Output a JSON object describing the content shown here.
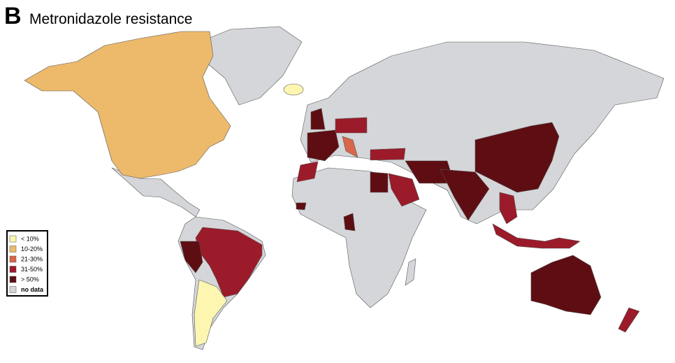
{
  "panel_letter": "B",
  "title": "Metronidazole resistance",
  "legend": {
    "items": [
      {
        "label": "< 10%",
        "color": "#fcf6b1"
      },
      {
        "label": "10-20%",
        "color": "#edb96b"
      },
      {
        "label": "21-30%",
        "color": "#d8664a"
      },
      {
        "label": "31-50%",
        "color": "#9b1b2a"
      },
      {
        "label": "> 50%",
        "color": "#5e0e12"
      },
      {
        "label": "no data",
        "color": "#d4d6d9"
      }
    ]
  }
}
